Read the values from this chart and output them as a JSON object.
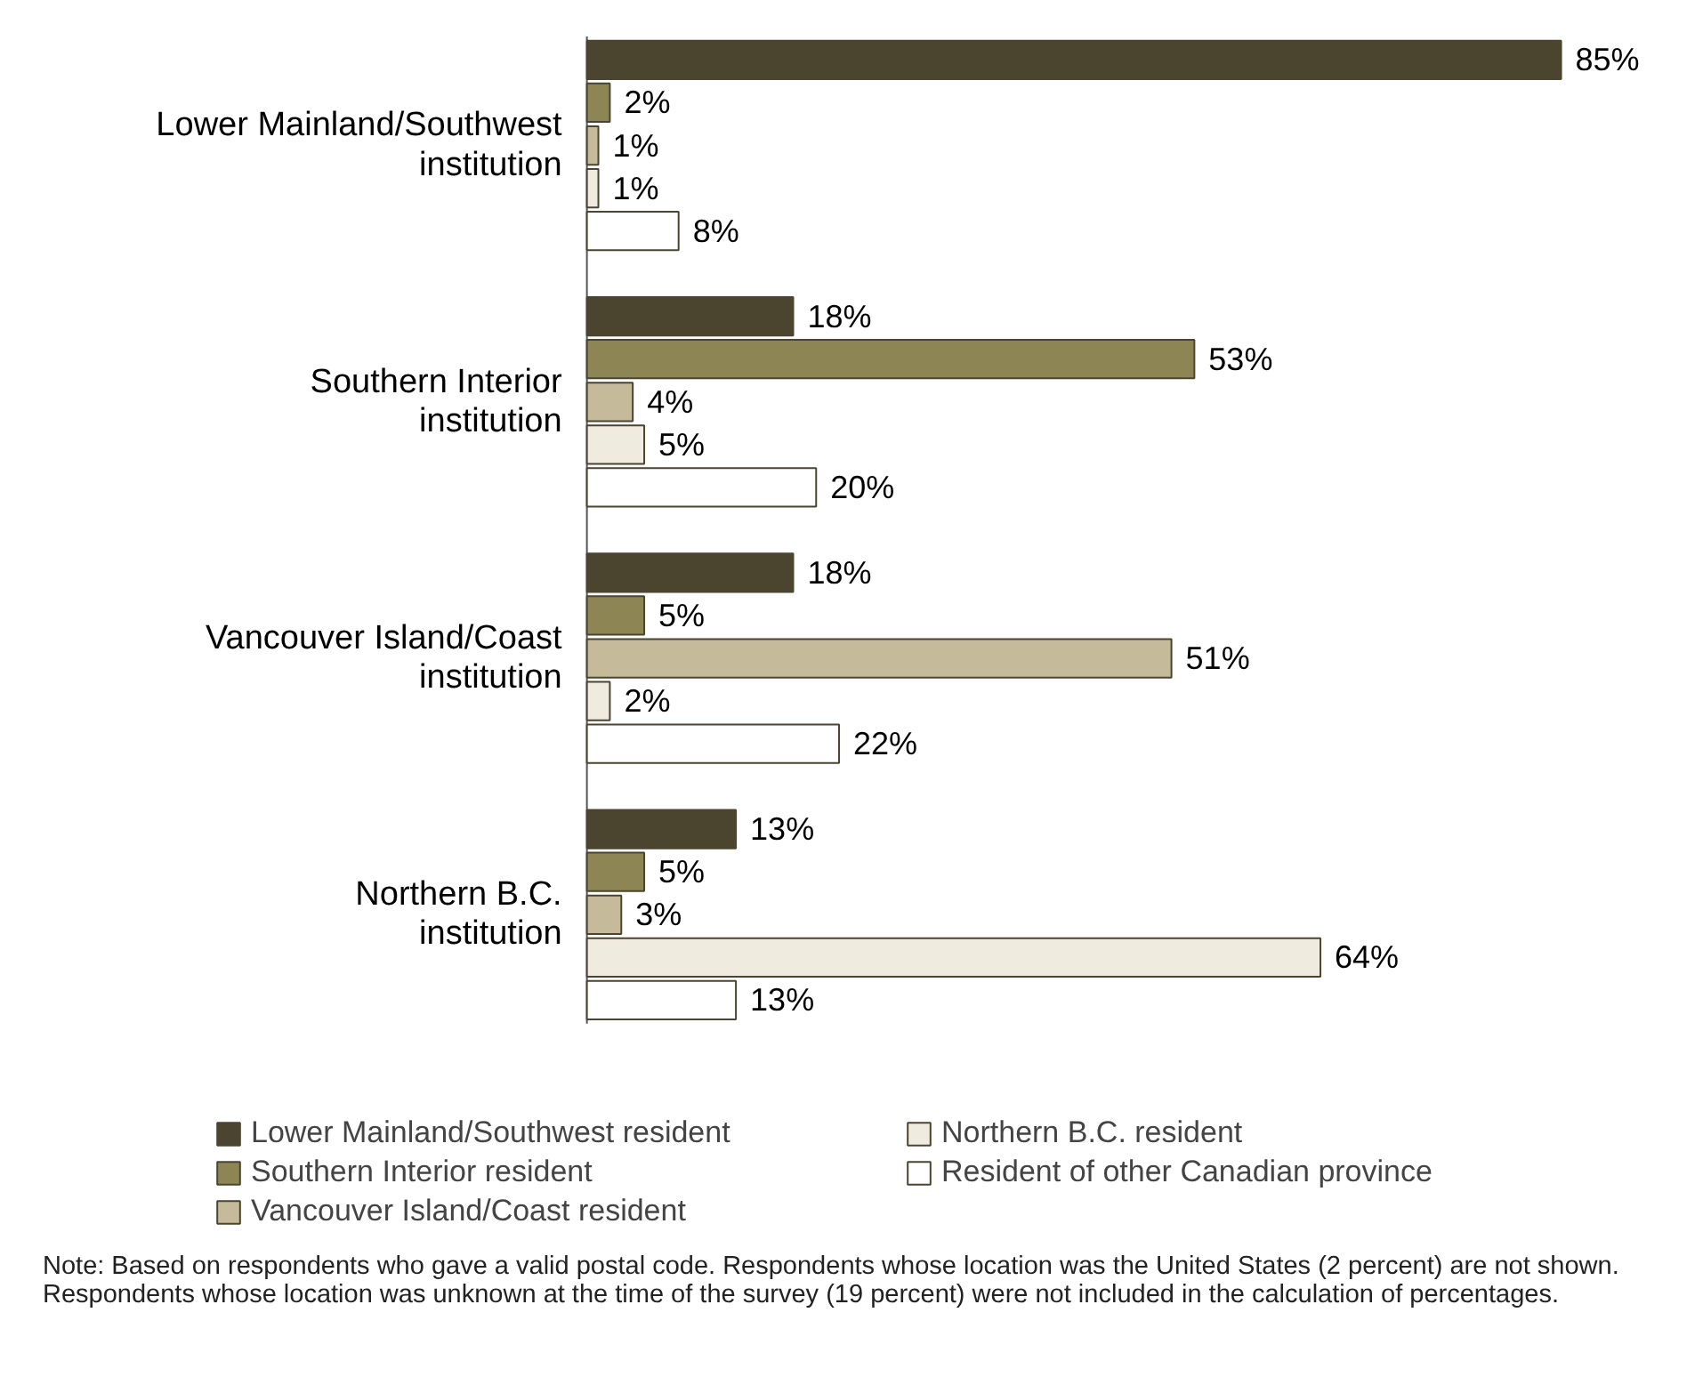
{
  "chart_data": {
    "type": "bar",
    "orientation": "horizontal",
    "categories": [
      "Lower Mainland/Southwest institution",
      "Southern Interior institution",
      "Vancouver Island/Coast institution",
      "Northern B.C. institution"
    ],
    "series": [
      {
        "name": "Lower Mainland/Southwest resident",
        "color": "#4b452f",
        "values": [
          85,
          18,
          18,
          13
        ],
        "value_labels": [
          "85%",
          "18%",
          "18%",
          "13%"
        ]
      },
      {
        "name": "Southern Interior resident",
        "color": "#8d8554",
        "values": [
          2,
          53,
          5,
          5
        ],
        "value_labels": [
          "2%",
          "53%",
          "5%",
          "5%"
        ]
      },
      {
        "name": "Vancouver Island/Coast resident",
        "color": "#c5bb9b",
        "values": [
          1,
          4,
          51,
          3
        ],
        "value_labels": [
          "1%",
          "4%",
          "51%",
          "3%"
        ]
      },
      {
        "name": "Northern B.C. resident",
        "color": "#efebdf",
        "values": [
          1,
          5,
          2,
          64
        ],
        "value_labels": [
          "1%",
          "5%",
          "2%",
          "64%"
        ]
      },
      {
        "name": "Resident of other Canadian province",
        "color": "#ffffff",
        "values": [
          8,
          20,
          22,
          13
        ],
        "value_labels": [
          "8%",
          "20%",
          "22%",
          "13%"
        ]
      }
    ],
    "legend": "bottom",
    "grid": false,
    "annotations": [
      "Note: Based on respondents who gave a valid postal code. Respondents whose location was the United States (2 percent) are not shown. Respondents whose location was unknown at the time of the survey (19 percent) were not included in the calculation of percentages."
    ]
  }
}
